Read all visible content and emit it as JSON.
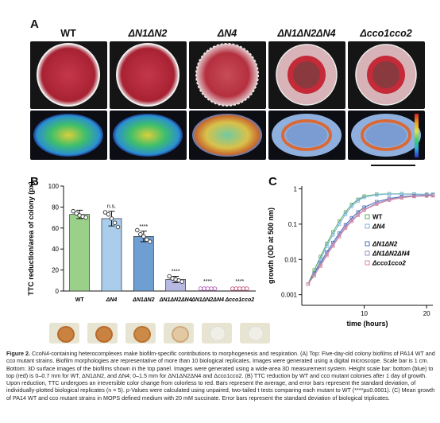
{
  "panel_a": {
    "letter": "A",
    "strains": [
      "WT",
      "ΔN1ΔN2",
      "ΔN4",
      "ΔN1ΔN2ΔN4",
      "Δcco1cco2"
    ]
  },
  "panel_b": {
    "letter": "B",
    "chart_data": {
      "type": "bar",
      "ylabel": "TTC reduction/area of colony (px)",
      "ylim": [
        0,
        100
      ],
      "yticks": [
        0,
        20,
        40,
        60,
        80,
        100
      ],
      "categories": [
        "WT",
        "ΔN4",
        "ΔN1ΔN2",
        "ΔN1ΔN2ΔN4",
        "ΔN1ΔN2ΔN4",
        "Δcco1cco2"
      ],
      "values": [
        73,
        69,
        52,
        11,
        0,
        0
      ],
      "errors": [
        4,
        7,
        5,
        3,
        0,
        0
      ],
      "colors": [
        "#9bd08a",
        "#a9cdeb",
        "#6f9ed3",
        "#b7b9e3",
        "#d7bde0",
        "#e6b9c8"
      ],
      "significance": [
        "",
        "n.s.",
        "****",
        "****",
        "****",
        "****"
      ],
      "points": [
        [
          76,
          74,
          72,
          71,
          70
        ],
        [
          75,
          73,
          69,
          65,
          61
        ],
        [
          58,
          54,
          52,
          49,
          47
        ],
        [
          14,
          12,
          11,
          10,
          9
        ],
        [
          0,
          0,
          0,
          0,
          0
        ],
        [
          0,
          0,
          0,
          0,
          0
        ]
      ]
    }
  },
  "panel_c": {
    "letter": "C",
    "chart_data": {
      "type": "line",
      "xlabel": "time (hours)",
      "ylabel": "growth (OD at 500 nm)",
      "yscale": "log",
      "ylim": [
        0.0005,
        1.2
      ],
      "xlim": [
        0,
        21
      ],
      "yticks": [
        0.001,
        0.01,
        0.1,
        1
      ],
      "ytick_labels": [
        "0.001",
        "0.01",
        "0.1",
        "1"
      ],
      "xticks": [
        10,
        20
      ],
      "series": [
        {
          "name": "WT",
          "color": "#5cab63",
          "x": [
            1,
            2,
            3,
            4,
            5,
            6,
            7,
            8,
            9,
            10,
            12,
            14,
            16,
            18,
            20,
            21
          ],
          "y": [
            0.002,
            0.005,
            0.012,
            0.028,
            0.06,
            0.12,
            0.22,
            0.36,
            0.5,
            0.62,
            0.7,
            0.72,
            0.72,
            0.71,
            0.7,
            0.7
          ]
        },
        {
          "name": "ΔN4",
          "color": "#7fb6e0",
          "x": [
            1,
            2,
            3,
            4,
            5,
            6,
            7,
            8,
            9,
            10,
            12,
            14,
            16,
            18,
            20,
            21
          ],
          "y": [
            0.002,
            0.004,
            0.01,
            0.024,
            0.05,
            0.1,
            0.19,
            0.32,
            0.46,
            0.58,
            0.68,
            0.71,
            0.71,
            0.7,
            0.7,
            0.69
          ]
        },
        {
          "name": "ΔN1ΔN2",
          "color": "#4a6fb5",
          "x": [
            1,
            2,
            3,
            4,
            5,
            6,
            7,
            8,
            9,
            10,
            12,
            14,
            16,
            18,
            20,
            21
          ],
          "y": [
            0.002,
            0.004,
            0.008,
            0.016,
            0.03,
            0.055,
            0.095,
            0.15,
            0.22,
            0.3,
            0.43,
            0.53,
            0.6,
            0.64,
            0.66,
            0.66
          ]
        },
        {
          "name": "ΔN1ΔN2ΔN4",
          "color": "#9a8fc9",
          "x": [
            1,
            2,
            3,
            4,
            5,
            6,
            7,
            8,
            9,
            10,
            12,
            14,
            16,
            18,
            20,
            21
          ],
          "y": [
            0.002,
            0.0035,
            0.007,
            0.014,
            0.026,
            0.048,
            0.083,
            0.13,
            0.19,
            0.26,
            0.39,
            0.5,
            0.57,
            0.62,
            0.64,
            0.65
          ]
        },
        {
          "name": "Δcco1cco2",
          "color": "#d98aa3",
          "x": [
            1,
            2,
            3,
            4,
            5,
            6,
            7,
            8,
            9,
            10,
            12,
            14,
            16,
            18,
            20,
            21
          ],
          "y": [
            0.002,
            0.0035,
            0.0065,
            0.013,
            0.024,
            0.044,
            0.077,
            0.12,
            0.18,
            0.25,
            0.37,
            0.48,
            0.56,
            0.61,
            0.63,
            0.64
          ]
        }
      ]
    }
  },
  "caption": {
    "figure_label": "Figure 2.",
    "text": "CcoN4-containing heterocomplexes make biofilm-specific contributions to morphogenesis and respiration. (A) Top: Five-day-old colony biofilms of PA14 WT and cco mutant strains. Biofilm morphologies are representative of more than 10 biological replicates. Images were generated using a digital microscope. Scale bar is 1 cm. Bottom: 3D surface images of the biofilms shown in the top panel. Images were generated using a wide-area 3D measurement system. Height scale bar: bottom (blue) to top (red) is 0–0.7 mm for WT, ΔN1ΔN2, and ΔN4; 0–1.5 mm for ΔN1ΔN2ΔN4 and Δcco1cco2. (B) TTC reduction by WT and cco mutant colonies after 1 day of growth. Upon reduction, TTC undergoes an irreversible color change from colorless to red. Bars represent the average, and error bars represent the standard deviation, of individually-plotted biological replicates (n = 5). p-Values were calculated using unpaired, two-tailed t tests comparing each mutant to WT (****p≤0.0001). (C) Mean growth of PA14 WT and cco mutant strains in MOPS defined medium with 20 mM succinate. Error bars represent the standard deviation of biological triplicates."
  }
}
